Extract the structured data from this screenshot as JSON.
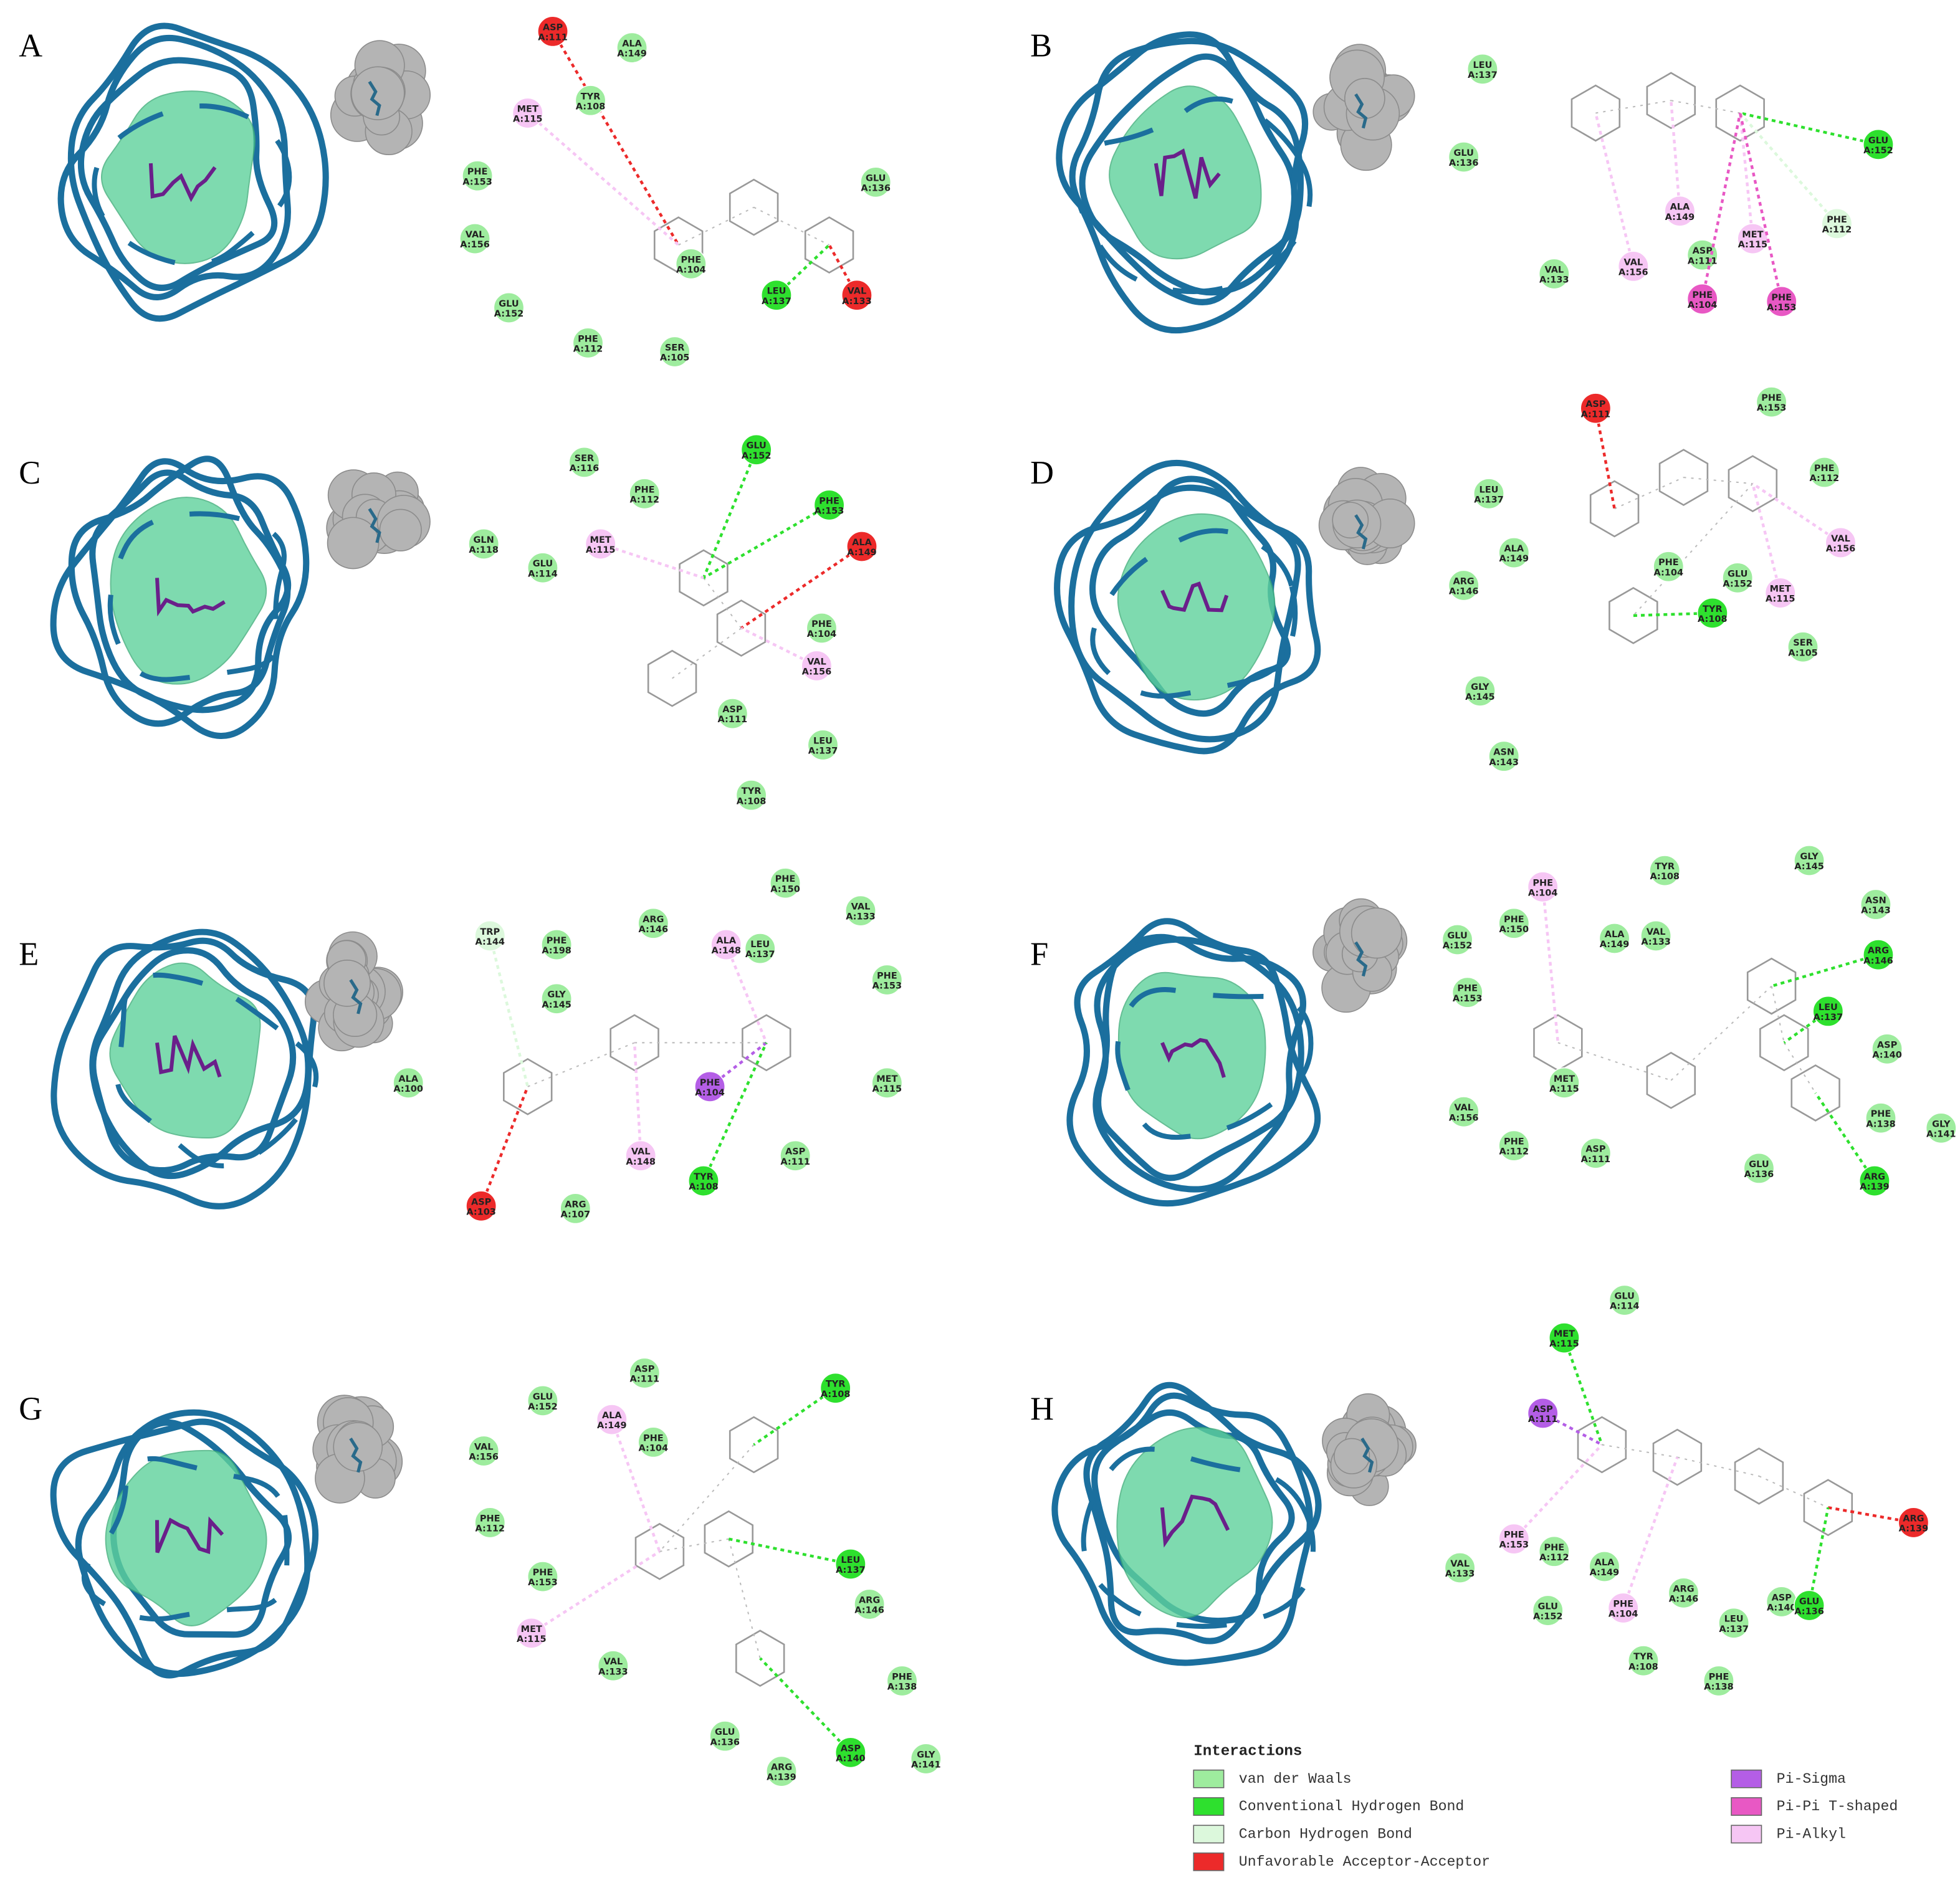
{
  "panels": [
    {
      "label": "A",
      "residues": [
        {
          "name": "ASP",
          "chain": "A:111",
          "interaction": "unfav"
        },
        {
          "name": "ALA",
          "chain": "A:149",
          "interaction": "vdw"
        },
        {
          "name": "TYR",
          "chain": "A:108",
          "interaction": "vdw"
        },
        {
          "name": "MET",
          "chain": "A:115",
          "interaction": "pialkyl"
        },
        {
          "name": "GLU",
          "chain": "A:136",
          "interaction": "vdw"
        },
        {
          "name": "PHE",
          "chain": "A:153",
          "interaction": "vdw"
        },
        {
          "name": "VAL",
          "chain": "A:156",
          "interaction": "vdw"
        },
        {
          "name": "PHE",
          "chain": "A:104",
          "interaction": "vdw"
        },
        {
          "name": "LEU",
          "chain": "A:137",
          "interaction": "hbond"
        },
        {
          "name": "VAL",
          "chain": "A:133",
          "interaction": "unfav"
        },
        {
          "name": "GLU",
          "chain": "A:152",
          "interaction": "vdw"
        },
        {
          "name": "PHE",
          "chain": "A:112",
          "interaction": "vdw"
        },
        {
          "name": "SER",
          "chain": "A:105",
          "interaction": "vdw"
        }
      ]
    },
    {
      "label": "B",
      "residues": [
        {
          "name": "LEU",
          "chain": "A:137",
          "interaction": "vdw"
        },
        {
          "name": "GLU",
          "chain": "A:136",
          "interaction": "vdw"
        },
        {
          "name": "GLU",
          "chain": "A:152",
          "interaction": "hbond"
        },
        {
          "name": "ALA",
          "chain": "A:149",
          "interaction": "pialkyl"
        },
        {
          "name": "PHE",
          "chain": "A:112",
          "interaction": "ch"
        },
        {
          "name": "VAL",
          "chain": "A:133",
          "interaction": "vdw"
        },
        {
          "name": "VAL",
          "chain": "A:156",
          "interaction": "pialkyl"
        },
        {
          "name": "ASP",
          "chain": "A:111",
          "interaction": "vdw"
        },
        {
          "name": "MET",
          "chain": "A:115",
          "interaction": "pialkyl"
        },
        {
          "name": "PHE",
          "chain": "A:104",
          "interaction": "pipi"
        },
        {
          "name": "PHE",
          "chain": "A:153",
          "interaction": "pipi"
        }
      ]
    },
    {
      "label": "C",
      "residues": [
        {
          "name": "SER",
          "chain": "A:116",
          "interaction": "vdw"
        },
        {
          "name": "GLU",
          "chain": "A:152",
          "interaction": "hbond"
        },
        {
          "name": "PHE",
          "chain": "A:112",
          "interaction": "vdw"
        },
        {
          "name": "PHE",
          "chain": "A:153",
          "interaction": "hbond"
        },
        {
          "name": "GLN",
          "chain": "A:118",
          "interaction": "vdw"
        },
        {
          "name": "GLU",
          "chain": "A:114",
          "interaction": "vdw"
        },
        {
          "name": "MET",
          "chain": "A:115",
          "interaction": "pialkyl"
        },
        {
          "name": "ALA",
          "chain": "A:149",
          "interaction": "unfav"
        },
        {
          "name": "PHE",
          "chain": "A:104",
          "interaction": "vdw"
        },
        {
          "name": "VAL",
          "chain": "A:156",
          "interaction": "pialkyl"
        },
        {
          "name": "ASP",
          "chain": "A:111",
          "interaction": "vdw"
        },
        {
          "name": "LEU",
          "chain": "A:137",
          "interaction": "vdw"
        },
        {
          "name": "TYR",
          "chain": "A:108",
          "interaction": "vdw"
        }
      ]
    },
    {
      "label": "D",
      "residues": [
        {
          "name": "ASP",
          "chain": "A:111",
          "interaction": "unfav"
        },
        {
          "name": "PHE",
          "chain": "A:153",
          "interaction": "vdw"
        },
        {
          "name": "LEU",
          "chain": "A:137",
          "interaction": "vdw"
        },
        {
          "name": "PHE",
          "chain": "A:112",
          "interaction": "vdw"
        },
        {
          "name": "ALA",
          "chain": "A:149",
          "interaction": "vdw"
        },
        {
          "name": "VAL",
          "chain": "A:156",
          "interaction": "pialkyl"
        },
        {
          "name": "ARG",
          "chain": "A:146",
          "interaction": "vdw"
        },
        {
          "name": "PHE",
          "chain": "A:104",
          "interaction": "vdw"
        },
        {
          "name": "GLU",
          "chain": "A:152",
          "interaction": "vdw"
        },
        {
          "name": "MET",
          "chain": "A:115",
          "interaction": "pialkyl"
        },
        {
          "name": "TYR",
          "chain": "A:108",
          "interaction": "hbond"
        },
        {
          "name": "SER",
          "chain": "A:105",
          "interaction": "vdw"
        },
        {
          "name": "GLY",
          "chain": "A:145",
          "interaction": "vdw"
        },
        {
          "name": "ASN",
          "chain": "A:143",
          "interaction": "vdw"
        }
      ]
    },
    {
      "label": "E",
      "residues": [
        {
          "name": "PHE",
          "chain": "A:150",
          "interaction": "vdw"
        },
        {
          "name": "VAL",
          "chain": "A:133",
          "interaction": "vdw"
        },
        {
          "name": "ARG",
          "chain": "A:146",
          "interaction": "vdw"
        },
        {
          "name": "TRP",
          "chain": "A:144",
          "interaction": "ch"
        },
        {
          "name": "PHE",
          "chain": "A:198",
          "interaction": "vdw"
        },
        {
          "name": "ALA",
          "chain": "A:148",
          "interaction": "pialkyl"
        },
        {
          "name": "LEU",
          "chain": "A:137",
          "interaction": "vdw"
        },
        {
          "name": "PHE",
          "chain": "A:153",
          "interaction": "vdw"
        },
        {
          "name": "GLY",
          "chain": "A:145",
          "interaction": "vdw"
        },
        {
          "name": "ALA",
          "chain": "A:100",
          "interaction": "vdw"
        },
        {
          "name": "MET",
          "chain": "A:115",
          "interaction": "vdw"
        },
        {
          "name": "PHE",
          "chain": "A:104",
          "interaction": "pisigma"
        },
        {
          "name": "VAL",
          "chain": "A:148",
          "interaction": "pialkyl"
        },
        {
          "name": "ASP",
          "chain": "A:111",
          "interaction": "vdw"
        },
        {
          "name": "TYR",
          "chain": "A:108",
          "interaction": "hbond"
        },
        {
          "name": "ASP",
          "chain": "A:103",
          "interaction": "unfav"
        },
        {
          "name": "ARG",
          "chain": "A:107",
          "interaction": "vdw"
        }
      ]
    },
    {
      "label": "F",
      "residues": [
        {
          "name": "PHE",
          "chain": "A:104",
          "interaction": "pialkyl"
        },
        {
          "name": "TYR",
          "chain": "A:108",
          "interaction": "vdw"
        },
        {
          "name": "GLY",
          "chain": "A:145",
          "interaction": "vdw"
        },
        {
          "name": "ASN",
          "chain": "A:143",
          "interaction": "vdw"
        },
        {
          "name": "PHE",
          "chain": "A:150",
          "interaction": "vdw"
        },
        {
          "name": "ALA",
          "chain": "A:149",
          "interaction": "vdw"
        },
        {
          "name": "VAL",
          "chain": "A:133",
          "interaction": "vdw"
        },
        {
          "name": "GLU",
          "chain": "A:152",
          "interaction": "vdw"
        },
        {
          "name": "ARG",
          "chain": "A:146",
          "interaction": "hbond"
        },
        {
          "name": "PHE",
          "chain": "A:153",
          "interaction": "vdw"
        },
        {
          "name": "LEU",
          "chain": "A:137",
          "interaction": "hbond"
        },
        {
          "name": "ASP",
          "chain": "A:140",
          "interaction": "vdw"
        },
        {
          "name": "VAL",
          "chain": "A:156",
          "interaction": "vdw"
        },
        {
          "name": "MET",
          "chain": "A:115",
          "interaction": "vdw"
        },
        {
          "name": "PHE",
          "chain": "A:138",
          "interaction": "vdw"
        },
        {
          "name": "GLY",
          "chain": "A:141",
          "interaction": "vdw"
        },
        {
          "name": "PHE",
          "chain": "A:112",
          "interaction": "vdw"
        },
        {
          "name": "ASP",
          "chain": "A:111",
          "interaction": "vdw"
        },
        {
          "name": "GLU",
          "chain": "A:136",
          "interaction": "vdw"
        },
        {
          "name": "ARG",
          "chain": "A:139",
          "interaction": "hbond"
        }
      ]
    },
    {
      "label": "G",
      "residues": [
        {
          "name": "ASP",
          "chain": "A:111",
          "interaction": "vdw"
        },
        {
          "name": "TYR",
          "chain": "A:108",
          "interaction": "hbond"
        },
        {
          "name": "GLU",
          "chain": "A:152",
          "interaction": "vdw"
        },
        {
          "name": "ALA",
          "chain": "A:149",
          "interaction": "pialkyl"
        },
        {
          "name": "PHE",
          "chain": "A:104",
          "interaction": "vdw"
        },
        {
          "name": "VAL",
          "chain": "A:156",
          "interaction": "vdw"
        },
        {
          "name": "PHE",
          "chain": "A:112",
          "interaction": "vdw"
        },
        {
          "name": "LEU",
          "chain": "A:137",
          "interaction": "hbond"
        },
        {
          "name": "ARG",
          "chain": "A:146",
          "interaction": "vdw"
        },
        {
          "name": "PHE",
          "chain": "A:153",
          "interaction": "vdw"
        },
        {
          "name": "MET",
          "chain": "A:115",
          "interaction": "pialkyl"
        },
        {
          "name": "VAL",
          "chain": "A:133",
          "interaction": "vdw"
        },
        {
          "name": "PHE",
          "chain": "A:138",
          "interaction": "vdw"
        },
        {
          "name": "GLU",
          "chain": "A:136",
          "interaction": "vdw"
        },
        {
          "name": "ASP",
          "chain": "A:140",
          "interaction": "hbond"
        },
        {
          "name": "GLY",
          "chain": "A:141",
          "interaction": "vdw"
        },
        {
          "name": "ARG",
          "chain": "A:139",
          "interaction": "vdw"
        }
      ]
    },
    {
      "label": "H",
      "residues": [
        {
          "name": "GLU",
          "chain": "A:114",
          "interaction": "vdw"
        },
        {
          "name": "MET",
          "chain": "A:115",
          "interaction": "hbond"
        },
        {
          "name": "ASP",
          "chain": "A:111",
          "interaction": "pisigma"
        },
        {
          "name": "ARG",
          "chain": "A:139",
          "interaction": "unfav"
        },
        {
          "name": "PHE",
          "chain": "A:153",
          "interaction": "pialkyl"
        },
        {
          "name": "PHE",
          "chain": "A:112",
          "interaction": "vdw"
        },
        {
          "name": "VAL",
          "chain": "A:133",
          "interaction": "vdw"
        },
        {
          "name": "ALA",
          "chain": "A:149",
          "interaction": "vdw"
        },
        {
          "name": "ARG",
          "chain": "A:146",
          "interaction": "vdw"
        },
        {
          "name": "ASP",
          "chain": "A:140",
          "interaction": "vdw"
        },
        {
          "name": "GLU",
          "chain": "A:136",
          "interaction": "hbond"
        },
        {
          "name": "GLU",
          "chain": "A:152",
          "interaction": "vdw"
        },
        {
          "name": "PHE",
          "chain": "A:104",
          "interaction": "pialkyl"
        },
        {
          "name": "LEU",
          "chain": "A:137",
          "interaction": "vdw"
        },
        {
          "name": "TYR",
          "chain": "A:108",
          "interaction": "vdw"
        },
        {
          "name": "PHE",
          "chain": "A:138",
          "interaction": "vdw"
        }
      ]
    }
  ],
  "legend": {
    "title": "Interactions",
    "items": [
      {
        "key": "vdw",
        "label": "van der Waals",
        "color": "#9eec9e"
      },
      {
        "key": "hbond",
        "label": "Conventional Hydrogen Bond",
        "color": "#2ee02e"
      },
      {
        "key": "ch",
        "label": "Carbon Hydrogen Bond",
        "color": "#dcf8dc"
      },
      {
        "key": "unfav",
        "label": "Unfavorable Acceptor-Acceptor",
        "color": "#ec2a2a"
      },
      {
        "key": "pisigma",
        "label": "Pi-Sigma",
        "color": "#b45ee6"
      },
      {
        "key": "pipi",
        "label": "Pi-Pi T-shaped",
        "color": "#e858c4"
      },
      {
        "key": "pialkyl",
        "label": "Pi-Alkyl",
        "color": "#f6c6f4"
      }
    ]
  }
}
